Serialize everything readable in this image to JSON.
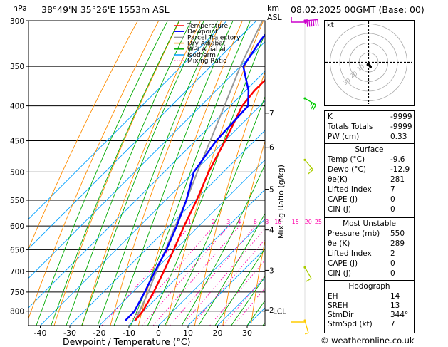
{
  "header": {
    "location": "38°49'N  35°26'E  1553m  ASL",
    "datetime": "08.02.2025  00GMT  (Base: 00)",
    "hpa_label": "hPa",
    "km_label": "km",
    "asl_label": "ASL",
    "mixing_ratio_axis_label": "Mixing Ratio (g/kg)",
    "xaxis_label": "Dewpoint / Temperature (°C)"
  },
  "legend": [
    {
      "label": "Temperature",
      "color": "#ff0000",
      "style": "solid"
    },
    {
      "label": "Dewpoint",
      "color": "#0000ff",
      "style": "solid"
    },
    {
      "label": "Parcel Trajectory",
      "color": "#999999",
      "style": "solid"
    },
    {
      "label": "Dry Adiabat",
      "color": "#ff8c00",
      "style": "solid"
    },
    {
      "label": "Wet Adiabat",
      "color": "#00aa00",
      "style": "solid"
    },
    {
      "label": "Isotherm",
      "color": "#00a0ff",
      "style": "solid"
    },
    {
      "label": "Mixing Ratio",
      "color": "#ff00aa",
      "style": "dotted"
    }
  ],
  "chart_data": {
    "type": "skew-t",
    "title": "38°49'N  35°26'E  1553m  ASL",
    "xlabel": "Dewpoint / Temperature (°C)",
    "ylabel": "hPa",
    "pressure_levels": [
      300,
      350,
      400,
      450,
      500,
      550,
      600,
      650,
      700,
      750,
      800
    ],
    "pressure_range": [
      300,
      840
    ],
    "temperature_ticks": [
      -40,
      -30,
      -20,
      -10,
      0,
      10,
      20,
      30
    ],
    "isotherm_range": [
      -80,
      40
    ],
    "km_ticks": [
      {
        "label": "7",
        "p": 410
      },
      {
        "label": "6",
        "p": 460
      },
      {
        "label": "5",
        "p": 530
      },
      {
        "label": "4",
        "p": 608
      },
      {
        "label": "3",
        "p": 697
      },
      {
        "label": "2",
        "p": 797
      }
    ],
    "lcl": {
      "label": "LCL",
      "p": 800
    },
    "mixing_ratio_labels": [
      "1",
      "2",
      "3",
      "4",
      "6",
      "8",
      "10",
      "15",
      "20",
      "25"
    ],
    "mixing_ratio_values": [
      1,
      2,
      3,
      4,
      6,
      8,
      10,
      15,
      20,
      25
    ],
    "temperature_profile": [
      [
        826,
        -9.6
      ],
      [
        800,
        -10.2
      ],
      [
        750,
        -13
      ],
      [
        700,
        -16.5
      ],
      [
        650,
        -20.5
      ],
      [
        600,
        -25
      ],
      [
        550,
        -29.5
      ],
      [
        500,
        -35
      ],
      [
        450,
        -40
      ],
      [
        420,
        -43.5
      ],
      [
        400,
        -46
      ],
      [
        380,
        -47
      ],
      [
        350,
        -47
      ],
      [
        300,
        -48
      ]
    ],
    "dewpoint_profile": [
      [
        826,
        -12.9
      ],
      [
        800,
        -13
      ],
      [
        750,
        -16
      ],
      [
        700,
        -19.5
      ],
      [
        650,
        -23
      ],
      [
        600,
        -27.5
      ],
      [
        550,
        -33
      ],
      [
        500,
        -40
      ],
      [
        450,
        -43
      ],
      [
        400,
        -44
      ],
      [
        380,
        -49
      ],
      [
        350,
        -59
      ],
      [
        320,
        -62
      ],
      [
        300,
        -63
      ]
    ],
    "parcel_profile": [
      [
        826,
        -9.6
      ],
      [
        800,
        -11.3
      ],
      [
        750,
        -14.8
      ],
      [
        700,
        -19
      ],
      [
        650,
        -23.3
      ],
      [
        600,
        -28
      ],
      [
        550,
        -33
      ],
      [
        500,
        -38.8
      ],
      [
        450,
        -45
      ],
      [
        400,
        -52
      ],
      [
        350,
        -60
      ],
      [
        300,
        -68
      ]
    ],
    "wind_barbs": [
      {
        "p": 300,
        "dir": 265,
        "spd": 65,
        "color": "#cc00cc"
      },
      {
        "p": 390,
        "dir": 300,
        "spd": 25,
        "color": "#00cc00"
      },
      {
        "p": 480,
        "dir": 320,
        "spd": 15,
        "color": "#aacc00"
      },
      {
        "p": 690,
        "dir": 330,
        "spd": 10,
        "color": "#aacc00"
      },
      {
        "p": 826,
        "dir": 344,
        "spd": 7,
        "color": "#ffcc00"
      }
    ]
  },
  "hodograph": {
    "unit_label": "kt",
    "rings_kt": [
      10,
      20,
      30,
      40
    ],
    "ring_labels": [
      "10",
      "20",
      "30"
    ],
    "points": [
      [
        -1,
        -4
      ],
      [
        -2,
        -6
      ],
      [
        1,
        -7
      ],
      [
        3,
        -9
      ],
      [
        5,
        -12
      ]
    ]
  },
  "indices": {
    "k_label": "K",
    "k_value": "-9999",
    "tt_label": "Totals Totals",
    "tt_value": "-9999",
    "pw_label": "PW (cm)",
    "pw_value": "0.33"
  },
  "surface": {
    "header": "Surface",
    "temp_label": "Temp (°C)",
    "temp_value": "-9.6",
    "dewp_label": "Dewp (°C)",
    "dewp_value": "-12.9",
    "theta_label": "θe(K)",
    "theta_value": "281",
    "li_label": "Lifted Index",
    "li_value": "7",
    "cape_label": "CAPE (J)",
    "cape_value": "0",
    "cin_label": "CIN (J)",
    "cin_value": "0"
  },
  "most_unstable": {
    "header": "Most Unstable",
    "pres_label": "Pressure (mb)",
    "pres_value": "550",
    "theta_label": "θe (K)",
    "theta_value": "289",
    "li_label": "Lifted Index",
    "li_value": "2",
    "cape_label": "CAPE (J)",
    "cape_value": "0",
    "cin_label": "CIN (J)",
    "cin_value": "0"
  },
  "hodo_table": {
    "header": "Hodograph",
    "eh_label": "EH",
    "eh_value": "14",
    "srh_label": "SREH",
    "srh_value": "13",
    "dir_label": "StmDir",
    "dir_value": "344°",
    "spd_label": "StmSpd (kt)",
    "spd_value": "7"
  },
  "footer": {
    "copyright": "© weatheronline.co.uk"
  }
}
